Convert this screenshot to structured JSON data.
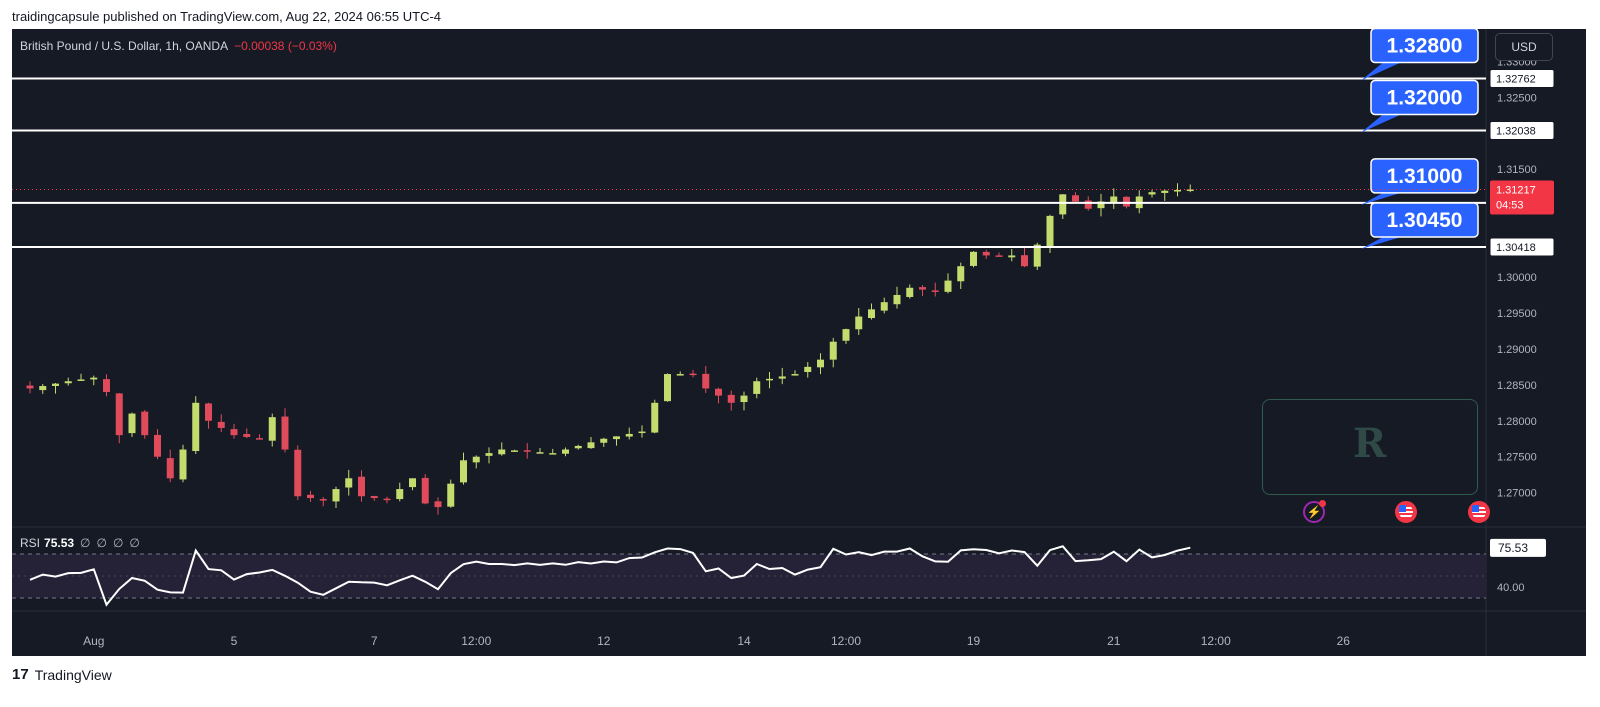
{
  "header": {
    "text": "traidingcapsule published on TradingView.com, Aug 22, 2024 06:55 UTC-4"
  },
  "legend": {
    "symbol": "British Pound / U.S. Dollar, 1h, OANDA",
    "change": "−0.00038 (−0.03%)"
  },
  "currency_button": "USD",
  "rsi_legend": {
    "name": "RSI",
    "value": "75.53",
    "placeholders": [
      "∅",
      "∅",
      "∅",
      "∅"
    ]
  },
  "footer": {
    "brand": "TradingView"
  },
  "event_icons": [
    "flash-event-icon",
    "us-flag-event-icon",
    "us-flag-event-icon"
  ],
  "colors": {
    "background": "#161a25",
    "up": "#c4db6e",
    "down": "#e04b5c",
    "callout": "#2962ff",
    "price_badge": "#f23645",
    "rsi_band": "#252238"
  },
  "chart_data": [
    {
      "type": "candlestick",
      "title": "British Pound / U.S. Dollar, 1h, OANDA",
      "ylim": [
        1.2655,
        1.3345
      ],
      "yticks": [
        "1.33000",
        "1.32500",
        "1.31500",
        "1.30000",
        "1.29500",
        "1.29000",
        "1.28500",
        "1.28000",
        "1.27500",
        "1.27000"
      ],
      "yticks_values": [
        1.33,
        1.325,
        1.315,
        1.3,
        1.295,
        1.29,
        1.285,
        1.28,
        1.275,
        1.27
      ],
      "xticks": [
        "Aug",
        "5",
        "7",
        "12:00",
        "12",
        "14",
        "12:00",
        "19",
        "21",
        "12:00",
        "26"
      ],
      "xticks_index": [
        5,
        16,
        27,
        35,
        45,
        56,
        64,
        74,
        85,
        93,
        103
      ],
      "candle_count": 92,
      "close_path": {
        "index": [
          0,
          3,
          5,
          6,
          7,
          8,
          11,
          12,
          13,
          14,
          15,
          16,
          18,
          19,
          20,
          21,
          23,
          24,
          25,
          26,
          28,
          29,
          30,
          31,
          32,
          34,
          35,
          37,
          41,
          45,
          48,
          50,
          52,
          53,
          54,
          55,
          56,
          57,
          60,
          62,
          63,
          65,
          67,
          68,
          69,
          71,
          72,
          73,
          74,
          75,
          77,
          78,
          79,
          80,
          81,
          82,
          83,
          84,
          85,
          86,
          87,
          88,
          89,
          90,
          91
        ],
        "close": [
          1.2845,
          1.2855,
          1.286,
          1.284,
          1.278,
          1.281,
          1.272,
          1.276,
          1.2825,
          1.28,
          1.279,
          1.278,
          1.2775,
          1.2805,
          1.276,
          1.2695,
          1.269,
          1.2705,
          1.272,
          1.2695,
          1.269,
          1.2705,
          1.272,
          1.2685,
          1.268,
          1.2745,
          1.275,
          1.276,
          1.2755,
          1.2775,
          1.2785,
          1.2865,
          1.2865,
          1.2845,
          1.2835,
          1.2825,
          1.2835,
          1.2855,
          1.2865,
          1.2885,
          1.291,
          1.2945,
          1.2965,
          1.2975,
          1.2985,
          1.298,
          1.2995,
          1.3015,
          1.3035,
          1.303,
          1.303,
          1.3015,
          1.3045,
          1.3085,
          1.3115,
          1.3105,
          1.3095,
          1.3105,
          1.3112,
          1.3098,
          1.3112,
          1.3118,
          1.312,
          1.3121,
          1.31217
        ]
      },
      "horizontal_levels": [
        {
          "axis_label": "1.32762",
          "value": 1.32762,
          "callout": "1.32800"
        },
        {
          "axis_label": "1.32038",
          "value": 1.32038,
          "callout": "1.32000"
        },
        {
          "axis_label": "1.31031",
          "value": 1.31031,
          "callout": "1.31000"
        },
        {
          "axis_label": "1.30418",
          "value": 1.30418,
          "callout": "1.30450"
        }
      ],
      "last_price": {
        "value": 1.31217,
        "label": "1.31217",
        "countdown": "04:53"
      }
    },
    {
      "type": "line",
      "title": "RSI",
      "ylim": [
        20,
        90
      ],
      "band": [
        30,
        70
      ],
      "yticks": [
        "40.00"
      ],
      "yticks_values": [
        40
      ],
      "last": {
        "value": 75.53,
        "label": "75.53"
      },
      "x_index": [
        0,
        3,
        5,
        6,
        7,
        8,
        11,
        12,
        13,
        14,
        15,
        16,
        18,
        19,
        20,
        21,
        23,
        24,
        25,
        26,
        28,
        29,
        30,
        31,
        32,
        34,
        35,
        37,
        41,
        45,
        48,
        50,
        52,
        53,
        54,
        55,
        56,
        57,
        60,
        62,
        63,
        65,
        67,
        68,
        69,
        71,
        72,
        73,
        74,
        75,
        77,
        78,
        79,
        80,
        81,
        82,
        83,
        84,
        85,
        86,
        87,
        88,
        89,
        90,
        91
      ],
      "values": [
        48,
        52,
        55,
        25,
        38,
        49,
        34,
        36,
        72,
        57,
        55,
        47,
        55,
        54,
        52,
        43,
        32,
        39,
        43,
        45,
        42,
        46,
        51,
        44,
        40,
        62,
        62,
        60,
        61,
        62,
        67,
        76,
        71,
        53,
        57,
        48,
        51,
        60,
        53,
        58,
        73,
        70,
        71,
        74,
        75,
        62,
        63,
        72,
        75,
        73,
        72,
        72,
        58,
        75,
        77,
        64,
        64,
        66,
        72,
        64,
        73,
        68,
        68,
        75,
        75.53
      ]
    }
  ]
}
